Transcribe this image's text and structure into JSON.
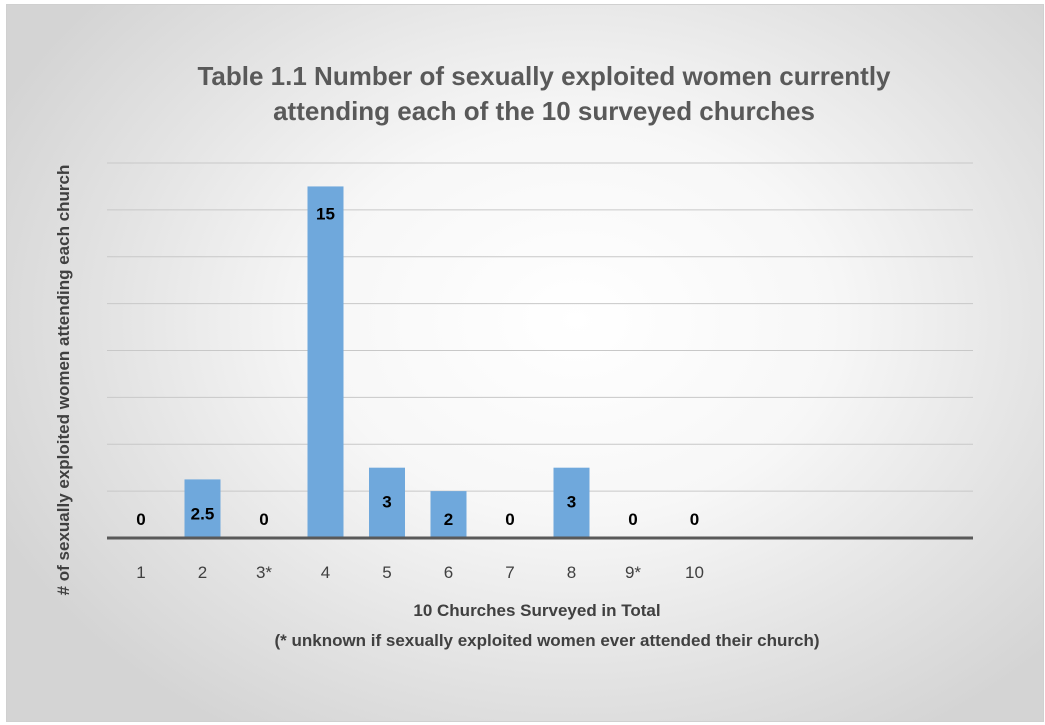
{
  "chart_data": {
    "type": "bar",
    "title": "Table 1.1 Number of sexually exploited women currently attending each of the 10 surveyed churches",
    "title_lines": [
      "Table 1.1 Number of sexually exploited women currently",
      "attending each of the 10 surveyed churches"
    ],
    "xlabel": "10 Churches Surveyed in Total",
    "xlabel_note": "(* unknown if sexually exploited women ever attended their church)",
    "ylabel": "# of sexually exploited women attending each church",
    "categories": [
      "1",
      "2",
      "3*",
      "4",
      "5",
      "6",
      "7",
      "8",
      "9*",
      "10"
    ],
    "values": [
      0,
      2.5,
      0,
      15,
      3,
      2,
      0,
      3,
      0,
      0
    ],
    "data_labels": [
      "0",
      "2.5",
      "0",
      "15",
      "3",
      "2",
      "0",
      "3",
      "0",
      "0"
    ],
    "ylim": [
      0,
      16
    ],
    "y_tick_labels_shown": false,
    "grid": true,
    "bar_color": "#6fa8dc",
    "gridline_color": "#c8c8c8"
  }
}
